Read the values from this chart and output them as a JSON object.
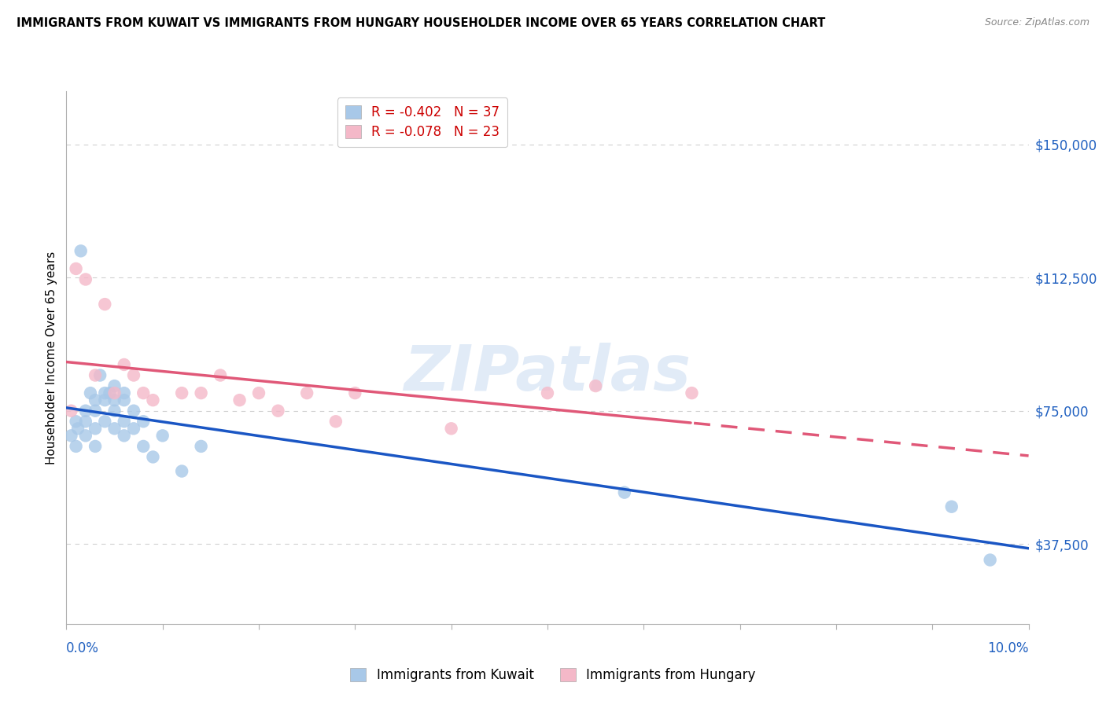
{
  "title": "IMMIGRANTS FROM KUWAIT VS IMMIGRANTS FROM HUNGARY HOUSEHOLDER INCOME OVER 65 YEARS CORRELATION CHART",
  "source": "Source: ZipAtlas.com",
  "ylabel": "Householder Income Over 65 years",
  "yticks": [
    37500,
    75000,
    112500,
    150000
  ],
  "ytick_labels": [
    "$37,500",
    "$75,000",
    "$112,500",
    "$150,000"
  ],
  "xmin": 0.0,
  "xmax": 0.1,
  "ymin": 15000,
  "ymax": 165000,
  "watermark": "ZIPatlas",
  "legend_kuwait": "R = -0.402   N = 37",
  "legend_hungary": "R = -0.078   N = 23",
  "kuwait_color": "#a8c8e8",
  "hungary_color": "#f4b8c8",
  "kuwait_line_color": "#1a56c4",
  "hungary_line_color": "#e05878",
  "kuwait_scatter_x": [
    0.0005,
    0.001,
    0.001,
    0.0012,
    0.0015,
    0.002,
    0.002,
    0.002,
    0.0025,
    0.003,
    0.003,
    0.003,
    0.003,
    0.0035,
    0.004,
    0.004,
    0.004,
    0.0045,
    0.005,
    0.005,
    0.005,
    0.005,
    0.006,
    0.006,
    0.006,
    0.006,
    0.007,
    0.007,
    0.008,
    0.008,
    0.009,
    0.01,
    0.012,
    0.014,
    0.058,
    0.092,
    0.096
  ],
  "kuwait_scatter_y": [
    68000,
    72000,
    65000,
    70000,
    120000,
    75000,
    72000,
    68000,
    80000,
    78000,
    75000,
    70000,
    65000,
    85000,
    80000,
    78000,
    72000,
    80000,
    82000,
    78000,
    75000,
    70000,
    80000,
    78000,
    72000,
    68000,
    75000,
    70000,
    72000,
    65000,
    62000,
    68000,
    58000,
    65000,
    52000,
    48000,
    33000
  ],
  "hungary_scatter_x": [
    0.0005,
    0.001,
    0.002,
    0.003,
    0.004,
    0.005,
    0.006,
    0.007,
    0.008,
    0.009,
    0.012,
    0.014,
    0.016,
    0.018,
    0.02,
    0.022,
    0.025,
    0.028,
    0.03,
    0.04,
    0.05,
    0.055,
    0.065
  ],
  "hungary_scatter_y": [
    75000,
    115000,
    112000,
    85000,
    105000,
    80000,
    88000,
    85000,
    80000,
    78000,
    80000,
    80000,
    85000,
    78000,
    80000,
    75000,
    80000,
    72000,
    80000,
    70000,
    80000,
    82000,
    80000
  ],
  "background_color": "#ffffff",
  "grid_color": "#d0d0d0"
}
